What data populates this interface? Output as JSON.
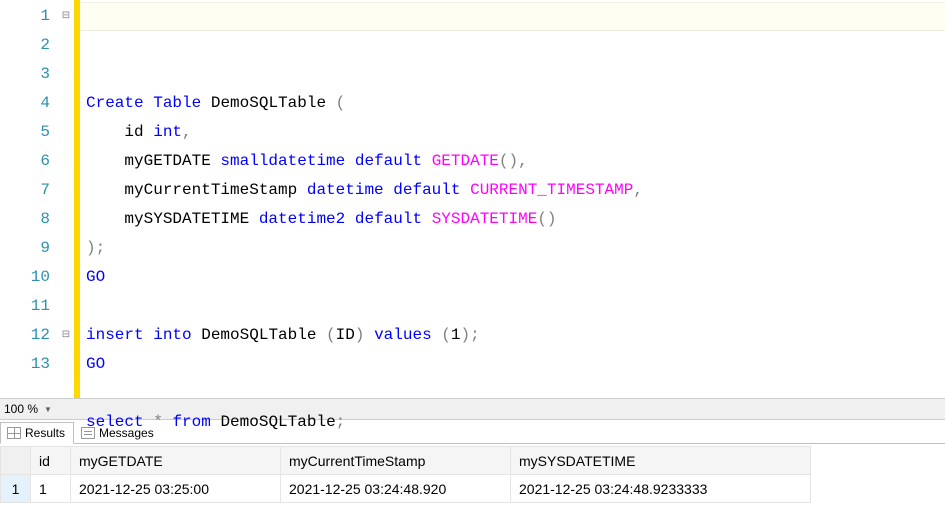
{
  "editor": {
    "lineNumbers": [
      "1",
      "2",
      "3",
      "4",
      "5",
      "6",
      "7",
      "8",
      "9",
      "10",
      "11",
      "12",
      "13"
    ],
    "foldMarkers": {
      "1": "⊟",
      "12": "⊟"
    },
    "tokens": [
      [
        [
          "kw",
          "Create"
        ],
        [
          "txt",
          " "
        ],
        [
          "kw",
          "Table"
        ],
        [
          "txt",
          " DemoSQLTable "
        ],
        [
          "gray",
          "("
        ]
      ],
      [
        [
          "txt",
          "    id "
        ],
        [
          "kw",
          "int"
        ],
        [
          "gray",
          ","
        ]
      ],
      [
        [
          "txt",
          "    myGETDATE "
        ],
        [
          "kw",
          "smalldatetime"
        ],
        [
          "txt",
          " "
        ],
        [
          "kw",
          "default"
        ],
        [
          "txt",
          " "
        ],
        [
          "fn",
          "GETDATE"
        ],
        [
          "gray",
          "(),"
        ]
      ],
      [
        [
          "txt",
          "    myCurrentTimeStamp "
        ],
        [
          "kw",
          "datetime"
        ],
        [
          "txt",
          " "
        ],
        [
          "kw",
          "default"
        ],
        [
          "txt",
          " "
        ],
        [
          "fn",
          "CURRENT_TIMESTAMP"
        ],
        [
          "gray",
          ","
        ]
      ],
      [
        [
          "txt",
          "    mySYSDATETIME "
        ],
        [
          "kw",
          "datetime2"
        ],
        [
          "txt",
          " "
        ],
        [
          "kw",
          "default"
        ],
        [
          "txt",
          " "
        ],
        [
          "fn",
          "SYSDATETIME"
        ],
        [
          "gray",
          "()"
        ]
      ],
      [
        [
          "gray",
          ");"
        ]
      ],
      [
        [
          "kw",
          "GO"
        ]
      ],
      [
        [
          "txt",
          ""
        ]
      ],
      [
        [
          "kw",
          "insert"
        ],
        [
          "txt",
          " "
        ],
        [
          "kw",
          "into"
        ],
        [
          "txt",
          " DemoSQLTable "
        ],
        [
          "gray",
          "("
        ],
        [
          "txt",
          "ID"
        ],
        [
          "gray",
          ")"
        ],
        [
          "txt",
          " "
        ],
        [
          "kw",
          "values"
        ],
        [
          "txt",
          " "
        ],
        [
          "gray",
          "("
        ],
        [
          "txt",
          "1"
        ],
        [
          "gray",
          ");"
        ]
      ],
      [
        [
          "kw",
          "GO"
        ]
      ],
      [
        [
          "txt",
          ""
        ]
      ],
      [
        [
          "kw",
          "select"
        ],
        [
          "txt",
          " "
        ],
        [
          "gray",
          "*"
        ],
        [
          "txt",
          " "
        ],
        [
          "kw",
          "from"
        ],
        [
          "txt",
          " DemoSQLTable"
        ],
        [
          "gray",
          ";"
        ]
      ],
      [
        [
          "txt",
          ""
        ]
      ]
    ],
    "currentLine": 1
  },
  "zoom": {
    "value": "100 %"
  },
  "tabs": {
    "results": "Results",
    "messages": "Messages",
    "active": "results"
  },
  "grid": {
    "columns": [
      "id",
      "myGETDATE",
      "myCurrentTimeStamp",
      "mySYSDATETIME"
    ],
    "colWidths": [
      "40px",
      "210px",
      "230px",
      "300px"
    ],
    "rows": [
      {
        "n": "1",
        "cells": [
          "1",
          "2021-12-25 03:25:00",
          "2021-12-25 03:24:48.920",
          "2021-12-25 03:24:48.9233333"
        ]
      }
    ]
  },
  "colors": {
    "keyword": "#0000ff",
    "function": "#ff00ff",
    "punctuation": "#808080",
    "lineNumber": "#2b91af",
    "yellowBar": "#ffd800",
    "currentLineBg": "#fefef2",
    "gridBorder": "#e4e4e4",
    "headerBg": "#f5f5f5"
  }
}
